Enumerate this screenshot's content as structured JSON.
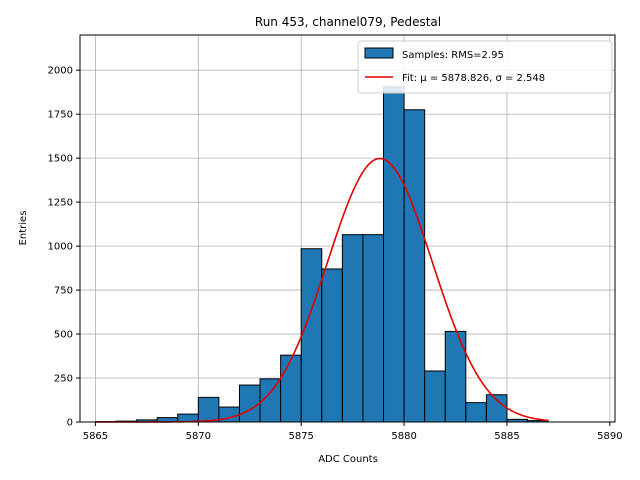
{
  "chart_data": {
    "type": "bar",
    "title": "Run 453, channel079, Pedestal",
    "xlabel": "ADC Counts",
    "ylabel": "Entries",
    "xlim": [
      5864.25,
      5890.25
    ],
    "ylim": [
      0,
      2200
    ],
    "xticks": [
      5865,
      5870,
      5875,
      5880,
      5885,
      5890
    ],
    "yticks": [
      0,
      250,
      500,
      750,
      1000,
      1250,
      1500,
      1750,
      2000
    ],
    "grid": true,
    "legend_position": "top-right",
    "bins": {
      "edges": [
        5865,
        5866,
        5867,
        5868,
        5869,
        5870,
        5871,
        5872,
        5873,
        5874,
        5875,
        5876,
        5877,
        5878,
        5879,
        5880,
        5881,
        5882,
        5883,
        5884,
        5885,
        5886,
        5887
      ],
      "counts": [
        2,
        5,
        12,
        25,
        45,
        140,
        85,
        210,
        245,
        380,
        985,
        870,
        1065,
        1065,
        1905,
        1775,
        290,
        515,
        110,
        155,
        15,
        8
      ]
    },
    "fit": {
      "type": "gaussian",
      "mu": 5878.826,
      "sigma": 2.548,
      "amplitude": 1498,
      "x_range": [
        5865,
        5887
      ]
    },
    "legend": [
      {
        "label": "Samples: RMS=2.95",
        "kind": "patch"
      },
      {
        "label": "Fit: μ = 5878.826, σ = 2.548",
        "kind": "line"
      }
    ],
    "colors": {
      "bar_fill": "#1f77b4",
      "bar_edge": "#000000",
      "fit_line": "#e00000",
      "grid": "#b0b0b0"
    }
  }
}
